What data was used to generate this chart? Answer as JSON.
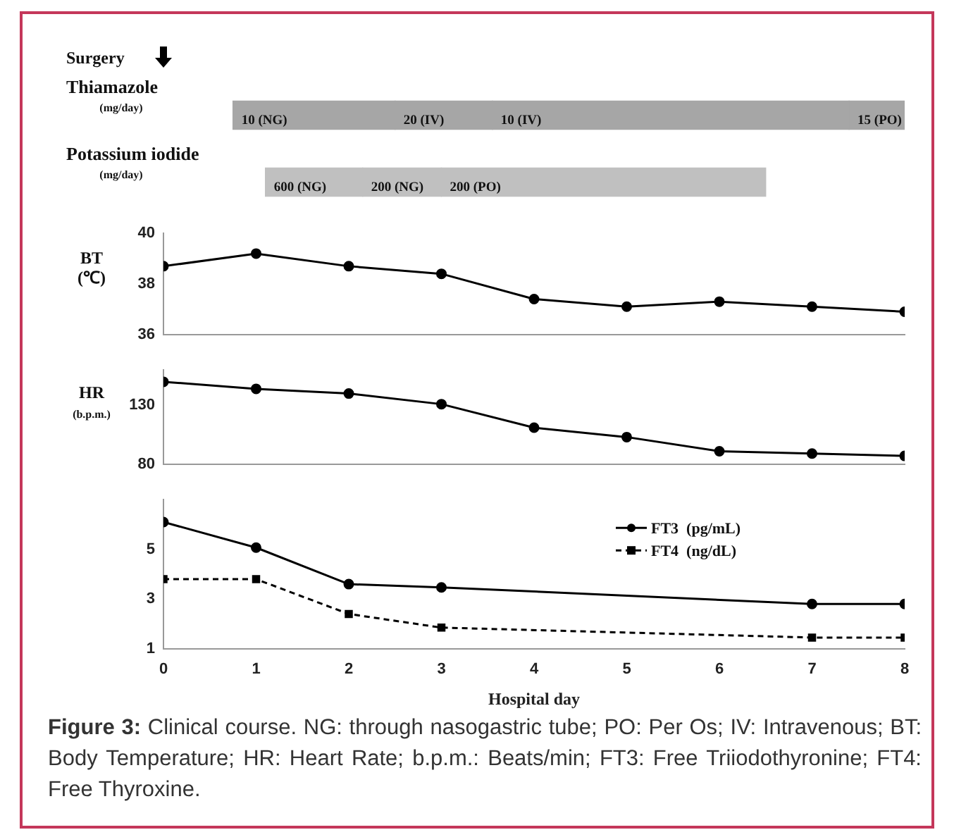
{
  "chart_data": [
    {
      "type": "bar",
      "orientation": "horizontal",
      "tick_labels": "y",
      "xlim": [
        0,
        8
      ],
      "categories": [
        "Thiamazole\n(mg/day)",
        "Potassium iodide\n(mg/day)"
      ],
      "annotations": [
        {
          "text": "Surgery",
          "x": 0
        },
        {
          "text": "10 (NG)",
          "x": 0.75,
          "y": "Thiamazole\n(mg/day)"
        },
        {
          "text": "20 (IV)",
          "x": 2.5,
          "y": "Thiamazole\n(mg/day)"
        },
        {
          "text": "10 (IV)",
          "x": 3.55,
          "y": "Thiamazole\n(mg/day)"
        },
        {
          "text": "15 (PO)",
          "x": 7.4,
          "y": "Thiamazole\n(mg/day)"
        },
        {
          "text": "600 (NG)",
          "x": 1.1,
          "y": "Potassium iodide\n(mg/day)"
        },
        {
          "text": "200 (NG)",
          "x": 2.15,
          "y": "Potassium iodide\n(mg/day)"
        },
        {
          "text": "200 (PO)",
          "x": 3.0,
          "y": "Potassium iodide\n(mg/day)"
        }
      ],
      "series": [
        {
          "color": "#a6a6a6",
          "base": [
            0.75,
            null
          ],
          "values": [
            1.75,
            null
          ]
        },
        {
          "color": "#a6a6a6",
          "base": [
            2.5,
            null
          ],
          "values": [
            1.05,
            null
          ]
        },
        {
          "color": "#a6a6a6",
          "base": [
            3.55,
            null
          ],
          "values": [
            3.85,
            null
          ]
        },
        {
          "color": "#a6a6a6",
          "base": [
            7.4,
            null
          ],
          "values": [
            0.6,
            null
          ]
        },
        {
          "color": "#c0c0c0",
          "base": [
            null,
            1.1
          ],
          "values": [
            null,
            1.05
          ]
        },
        {
          "color": "#c0c0c0",
          "base": [
            null,
            2.15
          ],
          "values": [
            null,
            0.85
          ]
        },
        {
          "color": "#c0c0c0",
          "base": [
            null,
            3.0
          ],
          "values": [
            null,
            3.5
          ]
        }
      ]
    },
    {
      "type": "line",
      "ylabel": "BT\n(℃)",
      "tick_labels": "y",
      "xlim": [
        0,
        8
      ],
      "ylim": [
        36,
        40
      ],
      "yticks": [
        36,
        38,
        40
      ],
      "marker": "circle",
      "x": [
        0,
        1,
        2,
        3,
        4,
        5,
        6,
        7,
        8
      ],
      "series": [
        {
          "color": "#000000",
          "values": [
            38.7,
            39.2,
            38.7,
            38.4,
            37.4,
            37.1,
            37.3,
            37.1,
            36.9
          ]
        }
      ]
    },
    {
      "type": "line",
      "ylabel": "HR\n(b.p.m.)",
      "tick_labels": "y",
      "xlim": [
        0,
        8
      ],
      "ylim": [
        80,
        160
      ],
      "yticks": [
        80,
        130
      ],
      "marker": "circle",
      "x": [
        0,
        1,
        2,
        3,
        4,
        5,
        6,
        7,
        8
      ],
      "series": [
        {
          "color": "#000000",
          "values": [
            150,
            144,
            140,
            131,
            111,
            103,
            91,
            89,
            87
          ]
        }
      ]
    },
    {
      "type": "line",
      "xlabel": "Hospital day",
      "xlim": [
        0,
        8
      ],
      "xticks": [
        0,
        1,
        2,
        3,
        4,
        5,
        6,
        7,
        8
      ],
      "ylim": [
        1,
        7
      ],
      "yticks": [
        1,
        3,
        5
      ],
      "legend": "top right",
      "annotations": [
        "Figure 3: Clinical course. NG: through nasogastric tube; PO: Per Os; IV: Intravenous; BT: Body Temperature; HR: Heart Rate; b.p.m.: Beats/min; FT3: Free Triiodothyronine; FT4: Free Thyroxine."
      ],
      "series": [
        {
          "name": "FT3  (pg/mL)",
          "color": "#000000",
          "marker": "circle",
          "line_style": "solid",
          "x": [
            0,
            1,
            2,
            3,
            7,
            8
          ],
          "values": [
            6.1,
            5.07,
            3.6,
            3.47,
            2.8,
            2.8
          ]
        },
        {
          "name": "FT4  (ng/dL)",
          "color": "#000000",
          "marker": "square",
          "line_style": "dashed",
          "x": [
            0,
            1,
            2,
            3,
            7,
            8
          ],
          "values": [
            3.8,
            3.8,
            2.4,
            1.85,
            1.45,
            1.45
          ]
        }
      ]
    }
  ]
}
